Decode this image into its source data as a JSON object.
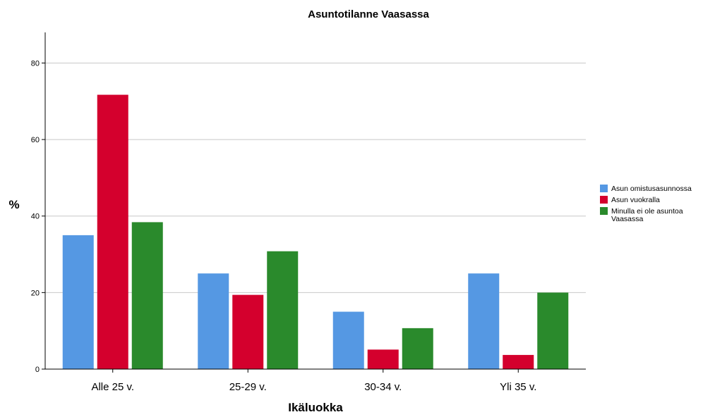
{
  "chart_data": {
    "type": "bar",
    "title": "Asuntotilanne Vaasassa",
    "xlabel": "Ikäluokka",
    "ylabel": "%",
    "ylim": [
      0,
      88
    ],
    "yticks": [
      0,
      20,
      40,
      60,
      80
    ],
    "grid": true,
    "legend_position": "right",
    "categories": [
      "Alle 25 v.",
      "25-29 v.",
      "30-34 v.",
      "Yli 35 v."
    ],
    "series": [
      {
        "name": "Asun omistusasunnossa",
        "color": "#5598e3",
        "values": [
          35,
          25,
          15,
          25
        ]
      },
      {
        "name": "Asun vuokralla",
        "color": "#d4002d",
        "values": [
          71.7,
          19.4,
          5.1,
          3.7
        ]
      },
      {
        "name": "Minulla ei ole asuntoa Vaasassa",
        "legend_lines": [
          "Minulla ei ole asuntoa",
          "Vaasassa"
        ],
        "color": "#2a8a2c",
        "values": [
          38.4,
          30.8,
          10.7,
          20
        ]
      }
    ]
  }
}
